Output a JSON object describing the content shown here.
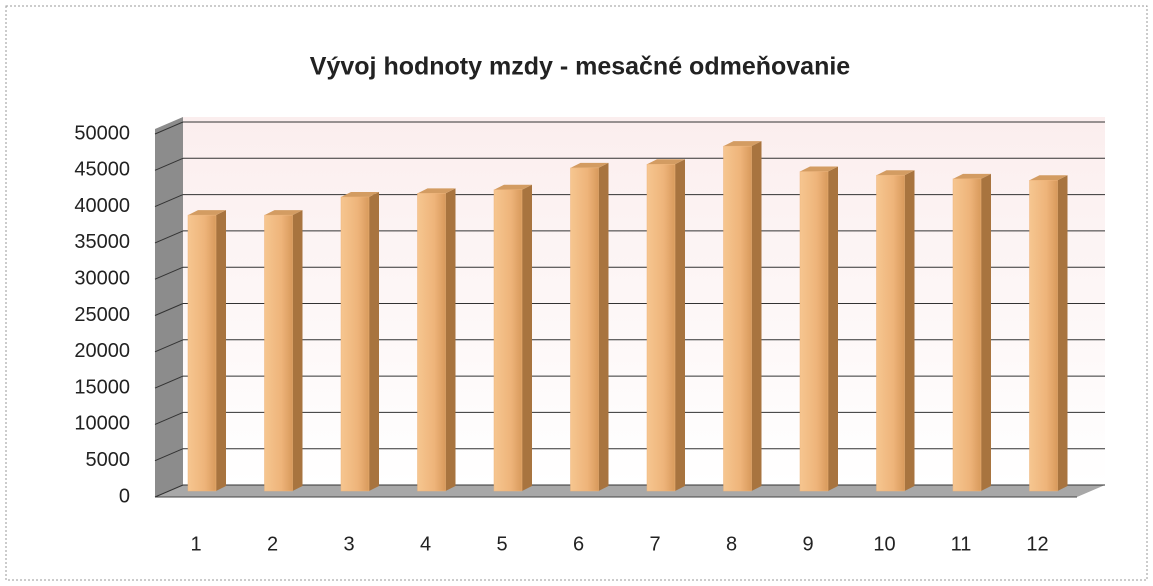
{
  "chart_data": {
    "type": "bar",
    "title": "Vývoj hodnoty mzdy  - mesačné odmeňovanie",
    "categories": [
      "1",
      "2",
      "3",
      "4",
      "5",
      "6",
      "7",
      "8",
      "9",
      "10",
      "11",
      "12"
    ],
    "values": [
      38000,
      38000,
      40500,
      41000,
      41500,
      44500,
      45000,
      47500,
      44000,
      43500,
      43000,
      42800
    ],
    "color": "#eeb47a",
    "ylim": [
      0,
      50000
    ],
    "yticks": [
      0,
      5000,
      10000,
      15000,
      20000,
      25000,
      30000,
      35000,
      40000,
      45000,
      50000
    ],
    "grid": true
  }
}
